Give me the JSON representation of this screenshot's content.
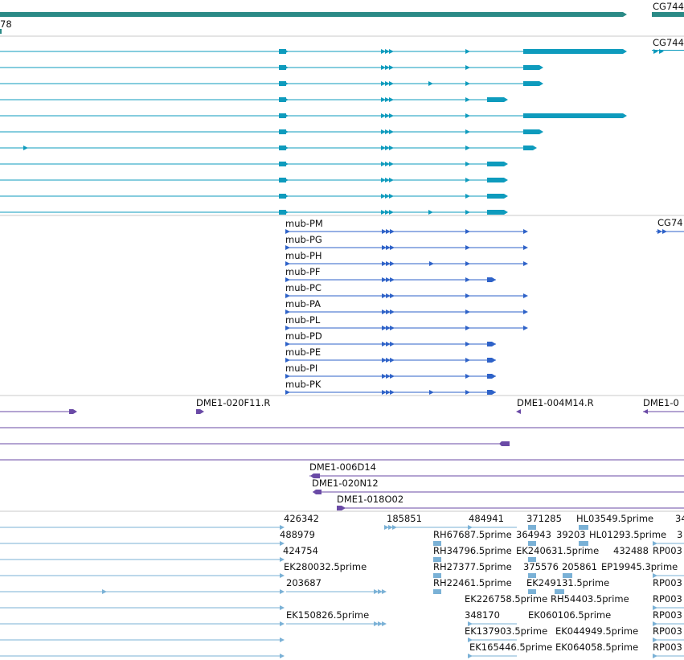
{
  "colors": {
    "gene_span": "#2a8a86",
    "transcripts": "#0e9bbd",
    "protein_coding": "#2e62c8",
    "clones": "#6a4aa6",
    "ests": "#7ab1d6",
    "separator": "#c8c8c8",
    "label": "#111111"
  },
  "tracks": {
    "gene_span": {
      "labels": {
        "left": "78",
        "right": "CG744"
      }
    },
    "transcripts": {
      "labels": {
        "right": "CG744"
      }
    },
    "proteins": {
      "right_label": "CG74",
      "items": [
        "mub-PM",
        "mub-PG",
        "mub-PH",
        "mub-PF",
        "mub-PC",
        "mub-PA",
        "mub-PL",
        "mub-PD",
        "mub-PE",
        "mub-PI",
        "mub-PK"
      ]
    },
    "clones": {
      "labels": [
        "DME1-020F11.R",
        "DME1-004M14.R",
        "DME1-0",
        "DME1-006D14",
        "DME1-020N12",
        "DME1-018O02"
      ]
    },
    "ests": {
      "labels": [
        "426342",
        "185851",
        "484941",
        "371285",
        "HL03549.5prime",
        "34",
        "488979",
        "RH67687.5prime",
        "364943",
        "39203",
        "HL01293.5prime",
        "3",
        "424754",
        "RH34796.5prime",
        "EK240631.5prime",
        "432488",
        "RP003",
        "EK280032.5prime",
        "RH27377.5prime",
        "375576",
        "205861",
        "EP19945.3prime",
        "203687",
        "RH22461.5prime",
        "EK249131.5prime",
        "RP003",
        "EK226758.5prime",
        "RH54403.5prime",
        "RP003",
        "EK150826.5prime",
        "348170",
        "EK060106.5prime",
        "RP003",
        "EK137903.5prime",
        "EK044949.5prime",
        "RP003",
        "EK165446.5prime",
        "EK064058.5prime",
        "RP003"
      ]
    }
  }
}
